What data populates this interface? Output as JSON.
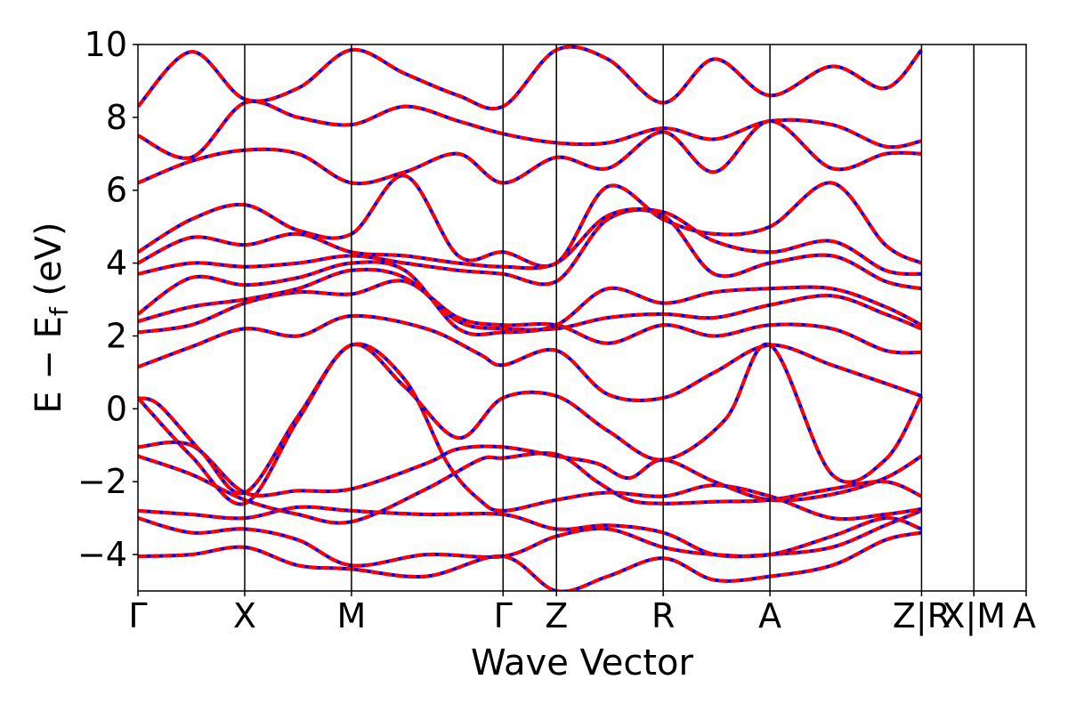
{
  "chart_data": {
    "type": "line",
    "title": "",
    "xlabel": "Wave Vector",
    "ylabel_main": "E − E",
    "ylabel_sub": "f",
    "ylabel_unit": " (eV)",
    "ylim": [
      -5,
      10
    ],
    "y_ticks": [
      -4,
      -2,
      0,
      2,
      4,
      6,
      8,
      10
    ],
    "y_tick_labels": [
      "−4",
      "−2",
      "0",
      "2",
      "4",
      "6",
      "8",
      "10"
    ],
    "x_range": [
      0,
      8.32
    ],
    "kpoints": [
      {
        "label": "Γ",
        "x": 0
      },
      {
        "label": "X",
        "x": 1.0
      },
      {
        "label": "M",
        "x": 2.0
      },
      {
        "label": "Γ",
        "x": 3.42
      },
      {
        "label": "Z",
        "x": 3.92
      },
      {
        "label": "R",
        "x": 4.92
      },
      {
        "label": "A",
        "x": 5.92
      },
      {
        "label": "Z|R",
        "x": 7.34
      },
      {
        "label": "X|M",
        "x": 7.83
      },
      {
        "label": "A",
        "x": 8.32
      }
    ],
    "colors": {
      "band_primary": "#ff0000",
      "band_overlay": "#0000ff",
      "kline": "#000000"
    },
    "grid": false,
    "legend": "none",
    "series": [
      {
        "values": [
          [
            0,
            -1.05
          ],
          [
            0.5,
            -1.0
          ],
          [
            1.0,
            -2.3
          ],
          [
            1.5,
            -2.25
          ],
          [
            2.0,
            -2.2
          ],
          [
            2.7,
            -1.5
          ],
          [
            3.0,
            -1.1
          ],
          [
            3.42,
            -1.05
          ],
          [
            3.92,
            -1.3
          ],
          [
            4.3,
            -1.5
          ],
          [
            4.6,
            -1.9
          ],
          [
            4.92,
            -1.4
          ],
          [
            5.4,
            -2.0
          ],
          [
            5.92,
            -2.5
          ],
          [
            6.5,
            -2.35
          ],
          [
            7.0,
            -1.9
          ],
          [
            7.34,
            -1.3
          ]
        ]
      },
      {
        "values": [
          [
            0,
            -1.3
          ],
          [
            0.5,
            -1.8
          ],
          [
            1.0,
            -2.5
          ],
          [
            1.5,
            -2.9
          ],
          [
            2.0,
            -3.1
          ],
          [
            2.7,
            -2.2
          ],
          [
            3.2,
            -1.4
          ],
          [
            3.42,
            -1.35
          ],
          [
            3.92,
            -1.25
          ],
          [
            4.3,
            -2.0
          ],
          [
            4.6,
            -2.5
          ],
          [
            4.92,
            -2.6
          ],
          [
            5.4,
            -2.55
          ],
          [
            5.92,
            -2.5
          ],
          [
            6.5,
            -2.2
          ],
          [
            7.0,
            -2.0
          ],
          [
            7.34,
            -2.4
          ]
        ]
      },
      {
        "values": [
          [
            0,
            -2.8
          ],
          [
            0.5,
            -2.9
          ],
          [
            1.0,
            -3.0
          ],
          [
            1.5,
            -2.7
          ],
          [
            2.0,
            -2.8
          ],
          [
            2.7,
            -2.9
          ],
          [
            3.42,
            -2.9
          ],
          [
            3.92,
            -3.3
          ],
          [
            4.4,
            -3.2
          ],
          [
            4.92,
            -3.4
          ],
          [
            5.4,
            -4.0
          ],
          [
            5.92,
            -4.0
          ],
          [
            6.5,
            -3.8
          ],
          [
            7.0,
            -3.2
          ],
          [
            7.34,
            -2.8
          ]
        ]
      },
      {
        "values": [
          [
            0,
            -3.0
          ],
          [
            0.5,
            -3.4
          ],
          [
            1.0,
            -3.3
          ],
          [
            1.5,
            -3.6
          ],
          [
            2.0,
            -4.3
          ],
          [
            2.7,
            -4.0
          ],
          [
            3.42,
            -4.05
          ],
          [
            3.92,
            -3.5
          ],
          [
            4.4,
            -3.3
          ],
          [
            4.92,
            -3.8
          ],
          [
            5.4,
            -4.0
          ],
          [
            5.92,
            -4.0
          ],
          [
            6.5,
            -3.5
          ],
          [
            7.0,
            -3.0
          ],
          [
            7.34,
            -3.3
          ]
        ]
      },
      {
        "values": [
          [
            0,
            -4.05
          ],
          [
            0.5,
            -4.0
          ],
          [
            1.0,
            -3.8
          ],
          [
            1.5,
            -4.3
          ],
          [
            2.0,
            -4.4
          ],
          [
            2.7,
            -4.6
          ],
          [
            3.42,
            -4.05
          ],
          [
            3.92,
            -5.0
          ],
          [
            4.4,
            -4.6
          ],
          [
            4.92,
            -4.1
          ],
          [
            5.4,
            -4.7
          ],
          [
            5.92,
            -4.6
          ],
          [
            6.5,
            -4.3
          ],
          [
            7.0,
            -3.6
          ],
          [
            7.34,
            -3.4
          ]
        ]
      },
      {
        "values": [
          [
            0,
            0.3
          ],
          [
            0.2,
            0.1
          ],
          [
            0.6,
            -1.2
          ],
          [
            1.0,
            -2.3
          ],
          [
            1.5,
            -0.2
          ],
          [
            2.0,
            1.75
          ],
          [
            2.5,
            0.8
          ],
          [
            2.9,
            -1.5
          ],
          [
            3.2,
            -2.5
          ],
          [
            3.42,
            -2.8
          ],
          [
            3.92,
            -2.5
          ],
          [
            4.4,
            -2.3
          ],
          [
            4.92,
            -2.4
          ],
          [
            5.4,
            -2.1
          ],
          [
            5.92,
            -2.4
          ],
          [
            6.5,
            -3.0
          ],
          [
            7.0,
            -2.9
          ],
          [
            7.34,
            -2.75
          ]
        ]
      },
      {
        "values": [
          [
            0,
            0.3
          ],
          [
            0.5,
            -1.3
          ],
          [
            1.0,
            -2.6
          ],
          [
            1.5,
            -0.3
          ],
          [
            2.0,
            1.75
          ],
          [
            2.5,
            0.6
          ],
          [
            3.0,
            -0.8
          ],
          [
            3.42,
            0.3
          ],
          [
            3.92,
            0.35
          ],
          [
            4.4,
            -0.6
          ],
          [
            4.92,
            -1.4
          ],
          [
            5.5,
            -0.3
          ],
          [
            5.92,
            1.75
          ],
          [
            6.5,
            -1.8
          ],
          [
            7.0,
            -1.4
          ],
          [
            7.34,
            0.35
          ]
        ]
      },
      {
        "values": [
          [
            0,
            1.15
          ],
          [
            0.5,
            1.7
          ],
          [
            1.0,
            2.2
          ],
          [
            1.5,
            2.0
          ],
          [
            2.0,
            2.55
          ],
          [
            2.7,
            2.2
          ],
          [
            3.2,
            1.5
          ],
          [
            3.42,
            1.2
          ],
          [
            3.92,
            1.6
          ],
          [
            4.4,
            0.4
          ],
          [
            4.92,
            0.3
          ],
          [
            5.4,
            1.0
          ],
          [
            5.92,
            1.75
          ],
          [
            6.5,
            1.2
          ],
          [
            7.0,
            0.7
          ],
          [
            7.34,
            0.35
          ]
        ]
      },
      {
        "values": [
          [
            0,
            2.1
          ],
          [
            0.5,
            2.3
          ],
          [
            1.0,
            2.9
          ],
          [
            1.5,
            3.2
          ],
          [
            2.0,
            3.15
          ],
          [
            2.5,
            3.5
          ],
          [
            3.0,
            2.5
          ],
          [
            3.42,
            2.3
          ],
          [
            3.92,
            2.3
          ],
          [
            4.4,
            1.8
          ],
          [
            4.92,
            2.3
          ],
          [
            5.4,
            2.0
          ],
          [
            5.92,
            2.3
          ],
          [
            6.5,
            2.2
          ],
          [
            7.0,
            1.6
          ],
          [
            7.34,
            1.55
          ]
        ]
      },
      {
        "values": [
          [
            0,
            2.4
          ],
          [
            0.5,
            2.8
          ],
          [
            1.0,
            3.0
          ],
          [
            1.5,
            3.3
          ],
          [
            2.0,
            3.8
          ],
          [
            2.5,
            3.6
          ],
          [
            3.0,
            2.4
          ],
          [
            3.42,
            2.2
          ],
          [
            3.92,
            2.2
          ],
          [
            4.4,
            2.5
          ],
          [
            4.92,
            2.6
          ],
          [
            5.4,
            2.5
          ],
          [
            5.92,
            2.85
          ],
          [
            6.5,
            3.1
          ],
          [
            7.0,
            2.6
          ],
          [
            7.34,
            2.2
          ]
        ]
      },
      {
        "values": [
          [
            0,
            2.6
          ],
          [
            0.5,
            3.6
          ],
          [
            1.0,
            3.4
          ],
          [
            1.5,
            3.6
          ],
          [
            2.0,
            4.0
          ],
          [
            2.5,
            3.8
          ],
          [
            3.0,
            2.2
          ],
          [
            3.42,
            2.1
          ],
          [
            3.92,
            2.3
          ],
          [
            4.4,
            3.3
          ],
          [
            4.92,
            2.9
          ],
          [
            5.4,
            3.2
          ],
          [
            5.92,
            3.3
          ],
          [
            6.5,
            3.3
          ],
          [
            7.0,
            2.8
          ],
          [
            7.34,
            2.3
          ]
        ]
      },
      {
        "values": [
          [
            0,
            3.7
          ],
          [
            0.5,
            4.0
          ],
          [
            1.0,
            3.9
          ],
          [
            1.5,
            4.0
          ],
          [
            2.0,
            4.2
          ],
          [
            2.5,
            4.0
          ],
          [
            3.0,
            3.8
          ],
          [
            3.42,
            3.7
          ],
          [
            3.92,
            3.5
          ],
          [
            4.4,
            5.2
          ],
          [
            4.92,
            5.3
          ],
          [
            5.4,
            3.7
          ],
          [
            5.92,
            4.0
          ],
          [
            6.5,
            4.2
          ],
          [
            7.0,
            3.5
          ],
          [
            7.34,
            3.3
          ]
        ]
      },
      {
        "values": [
          [
            0,
            4.0
          ],
          [
            0.5,
            4.7
          ],
          [
            1.0,
            4.5
          ],
          [
            1.5,
            4.8
          ],
          [
            2.0,
            4.3
          ],
          [
            2.5,
            4.2
          ],
          [
            3.0,
            4.0
          ],
          [
            3.42,
            3.9
          ],
          [
            3.92,
            4.0
          ],
          [
            4.4,
            5.3
          ],
          [
            4.92,
            5.4
          ],
          [
            5.4,
            4.6
          ],
          [
            5.92,
            4.3
          ],
          [
            6.5,
            4.6
          ],
          [
            7.0,
            3.8
          ],
          [
            7.34,
            3.7
          ]
        ]
      },
      {
        "values": [
          [
            0,
            4.3
          ],
          [
            0.5,
            5.2
          ],
          [
            1.0,
            5.6
          ],
          [
            1.5,
            4.9
          ],
          [
            2.0,
            4.8
          ],
          [
            2.5,
            6.4
          ],
          [
            3.0,
            4.2
          ],
          [
            3.42,
            4.3
          ],
          [
            3.92,
            4.0
          ],
          [
            4.4,
            6.1
          ],
          [
            4.92,
            5.2
          ],
          [
            5.4,
            4.8
          ],
          [
            5.92,
            5.0
          ],
          [
            6.5,
            6.2
          ],
          [
            7.0,
            4.5
          ],
          [
            7.34,
            4.0
          ]
        ]
      },
      {
        "values": [
          [
            0,
            6.2
          ],
          [
            0.5,
            6.8
          ],
          [
            1.0,
            7.1
          ],
          [
            1.5,
            7.0
          ],
          [
            2.0,
            6.2
          ],
          [
            2.5,
            6.5
          ],
          [
            3.0,
            7.0
          ],
          [
            3.42,
            6.2
          ],
          [
            3.92,
            6.9
          ],
          [
            4.4,
            6.6
          ],
          [
            4.92,
            7.6
          ],
          [
            5.4,
            6.5
          ],
          [
            5.92,
            7.9
          ],
          [
            6.5,
            6.6
          ],
          [
            7.0,
            7.0
          ],
          [
            7.34,
            7.0
          ]
        ]
      },
      {
        "values": [
          [
            0,
            7.5
          ],
          [
            0.5,
            6.9
          ],
          [
            1.0,
            8.4
          ],
          [
            1.5,
            8.0
          ],
          [
            2.0,
            7.8
          ],
          [
            2.5,
            8.3
          ],
          [
            3.0,
            7.9
          ],
          [
            3.42,
            7.55
          ],
          [
            3.92,
            7.3
          ],
          [
            4.4,
            7.3
          ],
          [
            4.92,
            7.7
          ],
          [
            5.4,
            7.4
          ],
          [
            5.92,
            7.9
          ],
          [
            6.5,
            7.8
          ],
          [
            7.0,
            7.2
          ],
          [
            7.34,
            7.35
          ]
        ]
      },
      {
        "values": [
          [
            0,
            8.3
          ],
          [
            0.5,
            9.8
          ],
          [
            1.0,
            8.5
          ],
          [
            1.5,
            8.8
          ],
          [
            2.0,
            9.85
          ],
          [
            2.5,
            9.2
          ],
          [
            3.0,
            8.6
          ],
          [
            3.42,
            8.3
          ],
          [
            3.92,
            9.85
          ],
          [
            4.4,
            9.6
          ],
          [
            4.92,
            8.4
          ],
          [
            5.4,
            9.6
          ],
          [
            5.92,
            8.6
          ],
          [
            6.5,
            9.4
          ],
          [
            7.0,
            8.8
          ],
          [
            7.34,
            9.85
          ]
        ]
      }
    ]
  }
}
